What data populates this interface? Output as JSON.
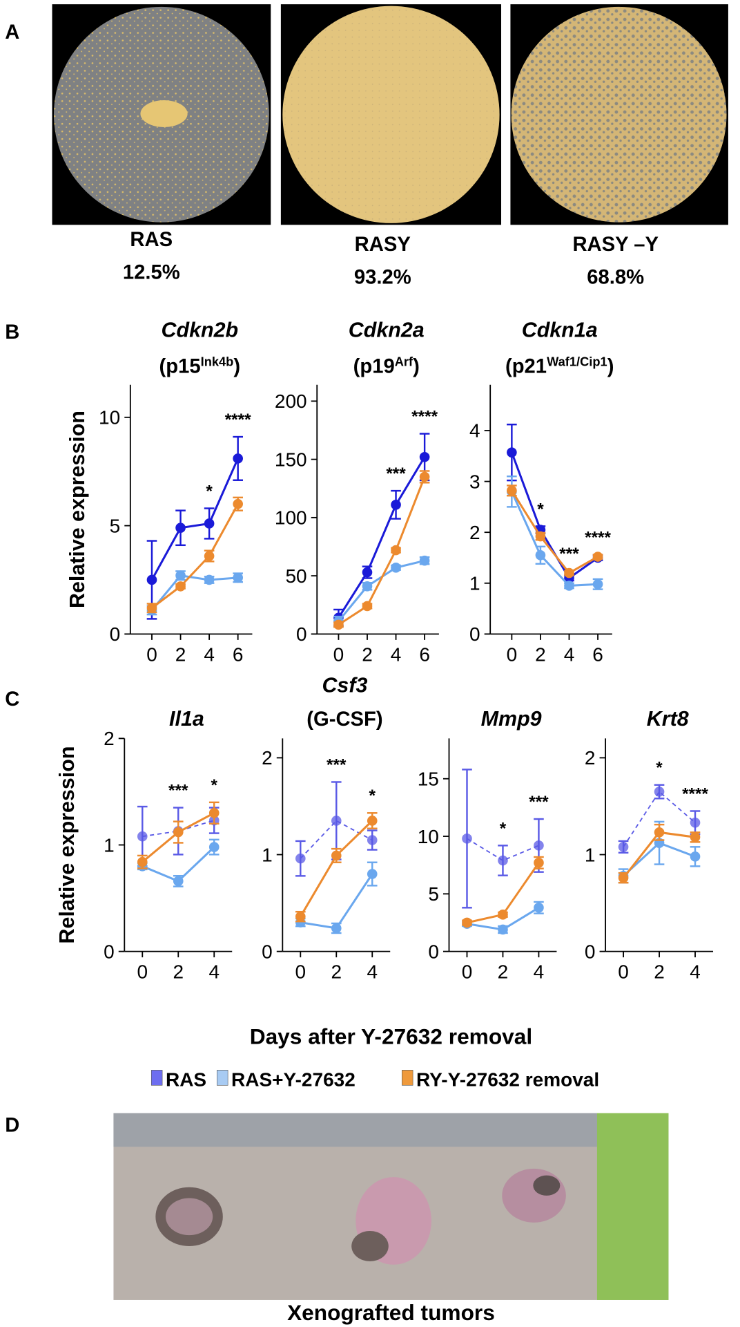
{
  "panel_a": {
    "label": "A",
    "plates": [
      {
        "name": "RAS",
        "percent": "12.5%"
      },
      {
        "name": "RASY",
        "percent": "93.2%"
      },
      {
        "name": "RASY –Y",
        "percent": "68.8%"
      }
    ]
  },
  "panel_b": {
    "label": "B"
  },
  "panel_c": {
    "label": "C",
    "xlabel": "Days after Y-27632 removal"
  },
  "panel_d": {
    "label": "D",
    "caption": "Xenografted tumors"
  },
  "legend": [
    {
      "name": "RAS",
      "color": "#6e6ef0"
    },
    {
      "name": "RAS+Y-27632",
      "color": "#a8cbf3"
    },
    {
      "name": "RY-Y-27632 removal",
      "color": "#ef9a3c"
    }
  ],
  "chart_data": [
    {
      "type": "line",
      "title": "Cdkn2b",
      "subtitle_parts": [
        "(p15",
        "Ink4b",
        ")"
      ],
      "ylabel": "Relative expression",
      "x": [
        0,
        2,
        4,
        6
      ],
      "xlim": [
        -1.5,
        7
      ],
      "ylim": [
        0,
        11.5
      ],
      "yticks": [
        0,
        5,
        10
      ],
      "series": [
        {
          "color": "#1a1ad8",
          "values": [
            2.5,
            4.9,
            5.1,
            8.1
          ],
          "errors": [
            1.8,
            0.8,
            0.7,
            1.0
          ]
        },
        {
          "color": "#6aa7ee",
          "values": [
            1.1,
            2.7,
            2.5,
            2.6
          ],
          "errors": [
            0.2,
            0.2,
            0.15,
            0.2
          ]
        },
        {
          "color": "#ec8a2e",
          "values": [
            1.2,
            2.2,
            3.6,
            6.0
          ],
          "errors": [
            0.2,
            0.1,
            0.25,
            0.3
          ]
        }
      ],
      "annotations": [
        {
          "x": 4,
          "text": "*"
        },
        {
          "x": 6,
          "text": "****"
        }
      ]
    },
    {
      "type": "line",
      "title": "Cdkn2a",
      "subtitle_parts": [
        "(p19",
        "Arf",
        ")"
      ],
      "x": [
        0,
        2,
        4,
        6
      ],
      "xlim": [
        -1.5,
        7
      ],
      "ylim": [
        0,
        214
      ],
      "yticks": [
        0,
        50,
        100,
        150,
        200
      ],
      "series": [
        {
          "color": "#1a1ad8",
          "values": [
            14,
            53,
            111,
            152
          ],
          "errors": [
            7,
            5,
            12,
            20
          ]
        },
        {
          "color": "#6aa7ee",
          "values": [
            11,
            41,
            57,
            63
          ],
          "errors": [
            4,
            3,
            2,
            3
          ]
        },
        {
          "color": "#ec8a2e",
          "values": [
            8,
            24,
            72,
            135
          ],
          "errors": [
            2,
            2,
            2,
            5
          ]
        }
      ],
      "annotations": [
        {
          "x": 4,
          "text": "***"
        },
        {
          "x": 6,
          "text": "****"
        }
      ]
    },
    {
      "type": "line",
      "title": "Cdkn1a",
      "subtitle_parts": [
        "(p21",
        "Waf1/Cip1",
        ")"
      ],
      "x": [
        0,
        2,
        4,
        6
      ],
      "xlim": [
        -1.5,
        7
      ],
      "ylim": [
        0,
        4.9
      ],
      "yticks": [
        0,
        1,
        2,
        3,
        4
      ],
      "series": [
        {
          "color": "#1a1ad8",
          "values": [
            3.57,
            2.05,
            1.1,
            1.5
          ],
          "errors": [
            0.55,
            0.07,
            0.05,
            0.05
          ]
        },
        {
          "color": "#6aa7ee",
          "values": [
            2.8,
            1.55,
            0.95,
            0.98
          ],
          "errors": [
            0.3,
            0.17,
            0.05,
            0.1
          ]
        },
        {
          "color": "#ec8a2e",
          "values": [
            2.82,
            1.92,
            1.2,
            1.52
          ],
          "errors": [
            0.1,
            0.07,
            0.04,
            0.04
          ]
        }
      ],
      "annotations": [
        {
          "x": 2,
          "text": "*"
        },
        {
          "x": 4,
          "text": "***"
        },
        {
          "x": 6,
          "text": "****"
        }
      ]
    },
    {
      "type": "line",
      "title": "Il1a",
      "subtitle_parts": [],
      "ylabel": "Relative expression",
      "x": [
        0,
        2,
        4
      ],
      "xlim": [
        -1,
        5
      ],
      "ylim": [
        0,
        2
      ],
      "yticks": [
        0,
        1,
        2
      ],
      "series": [
        {
          "color": "#5a5ae6",
          "dashed": true,
          "values": [
            1.08,
            1.13,
            1.23
          ],
          "errors": [
            0.28,
            0.22,
            0.12
          ]
        },
        {
          "color": "#6aa7ee",
          "values": [
            0.8,
            0.66,
            0.98
          ],
          "errors": [
            0.03,
            0.05,
            0.07
          ]
        },
        {
          "color": "#ec8a2e",
          "values": [
            0.84,
            1.12,
            1.3
          ],
          "errors": [
            0.06,
            0.1,
            0.1
          ]
        }
      ],
      "annotations": [
        {
          "x": 2,
          "text": "***"
        },
        {
          "x": 4,
          "text": "*"
        }
      ]
    },
    {
      "type": "line",
      "title": "Csf3",
      "subtitle_parts": [
        "(G-CSF)"
      ],
      "x": [
        0,
        2,
        4
      ],
      "xlim": [
        -1,
        5
      ],
      "ylim": [
        0,
        2.2
      ],
      "yticks": [
        0,
        1,
        2
      ],
      "series": [
        {
          "color": "#5a5ae6",
          "dashed": true,
          "values": [
            0.96,
            1.35,
            1.15
          ],
          "errors": [
            0.18,
            0.4,
            0.1
          ]
        },
        {
          "color": "#6aa7ee",
          "values": [
            0.3,
            0.24,
            0.8
          ],
          "errors": [
            0.04,
            0.05,
            0.12
          ]
        },
        {
          "color": "#ec8a2e",
          "values": [
            0.36,
            0.99,
            1.35
          ],
          "errors": [
            0.05,
            0.07,
            0.08
          ]
        }
      ],
      "annotations": [
        {
          "x": 2,
          "text": "***"
        },
        {
          "x": 4,
          "text": "*"
        }
      ]
    },
    {
      "type": "line",
      "title": "Mmp9",
      "subtitle_parts": [],
      "x": [
        0,
        2,
        4
      ],
      "xlim": [
        -1,
        5
      ],
      "ylim": [
        0,
        18.5
      ],
      "yticks": [
        0,
        5,
        10,
        15
      ],
      "series": [
        {
          "color": "#5a5ae6",
          "dashed": true,
          "values": [
            9.8,
            7.9,
            9.2
          ],
          "errors": [
            6.0,
            1.3,
            2.3
          ]
        },
        {
          "color": "#6aa7ee",
          "values": [
            2.4,
            1.9,
            3.8
          ],
          "errors": [
            0.2,
            0.3,
            0.5
          ]
        },
        {
          "color": "#ec8a2e",
          "values": [
            2.5,
            3.2,
            7.7
          ],
          "errors": [
            0.2,
            0.2,
            0.5
          ]
        }
      ],
      "annotations": [
        {
          "x": 2,
          "text": "*"
        },
        {
          "x": 4,
          "text": "***"
        }
      ]
    },
    {
      "type": "line",
      "title": "Krt8",
      "subtitle_parts": [],
      "x": [
        0,
        2,
        4
      ],
      "xlim": [
        -1,
        5
      ],
      "ylim": [
        0,
        2.2
      ],
      "yticks": [
        0,
        1,
        2
      ],
      "series": [
        {
          "color": "#5a5ae6",
          "dashed": true,
          "values": [
            1.08,
            1.65,
            1.33
          ],
          "errors": [
            0.06,
            0.07,
            0.12
          ]
        },
        {
          "color": "#6aa7ee",
          "values": [
            0.78,
            1.12,
            0.98
          ],
          "errors": [
            0.07,
            0.22,
            0.1
          ]
        },
        {
          "color": "#ec8a2e",
          "values": [
            0.76,
            1.23,
            1.18
          ],
          "errors": [
            0.05,
            0.08,
            0.05
          ]
        }
      ],
      "annotations": [
        {
          "x": 2,
          "text": "*"
        },
        {
          "x": 4,
          "text": "****"
        }
      ]
    }
  ]
}
